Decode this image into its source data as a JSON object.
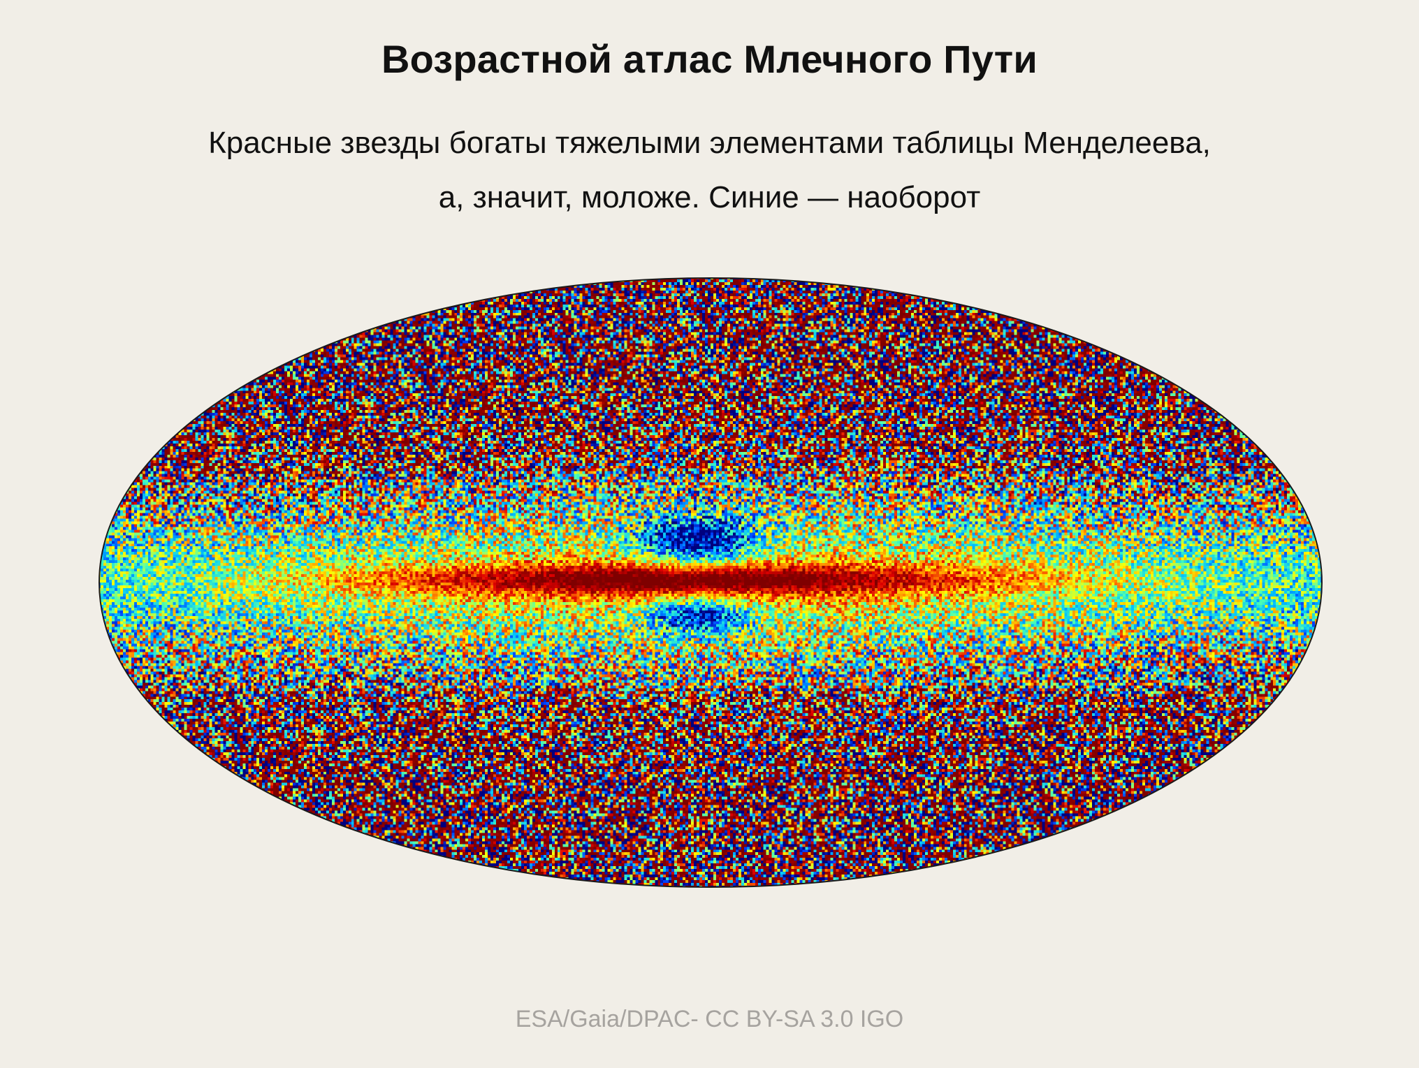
{
  "header": {
    "title": "Возрастной атлас Млечного Пути",
    "subtitle_lines": [
      "Красные звезды богаты тяжелыми элементами таблицы Менделеева,",
      "а, значит, моложе. Синие — наоборот"
    ]
  },
  "sky_map": {
    "projection": "Mollweide all-sky ellipse",
    "colormap": [
      "#00007f",
      "#0040ff",
      "#00c0ff",
      "#4dffb2",
      "#ffff00",
      "#ff8000",
      "#e00000",
      "#7f0000"
    ],
    "colormap_meaning": {
      "red": "young, metal-rich",
      "blue": "old, metal-poor"
    }
  },
  "credit": "ESA/Gaia/DPAC- CC BY-SA 3.0 IGO",
  "colors": {
    "background": "#f1eee7",
    "title": "#111111",
    "credit": "#a6a39f",
    "outline": "#1a1a1a"
  }
}
